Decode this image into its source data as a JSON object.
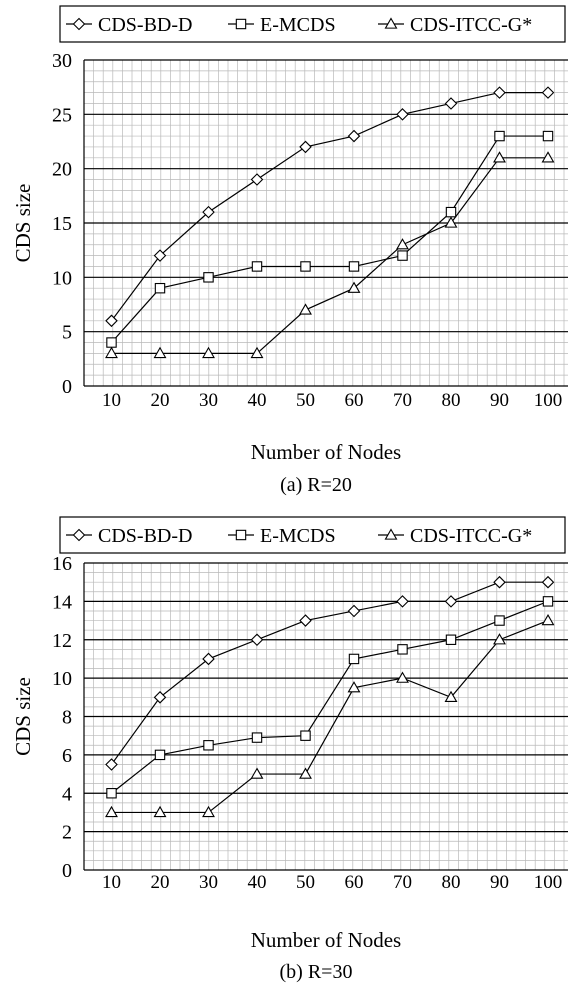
{
  "chart_data": [
    {
      "type": "line",
      "caption": "(a) R=20",
      "xlabel": "Number of Nodes",
      "ylabel": "CDS size",
      "x": [
        10,
        20,
        30,
        40,
        50,
        60,
        70,
        80,
        90,
        100
      ],
      "ylim": [
        0,
        30
      ],
      "yticks": [
        0,
        5,
        10,
        15,
        20,
        25,
        30
      ],
      "grid": true,
      "legend_position": "top",
      "series": [
        {
          "name": "CDS-BD-D",
          "marker": "diamond",
          "values": [
            6,
            12,
            16,
            19,
            22,
            23,
            25,
            26,
            27,
            27
          ]
        },
        {
          "name": "E-MCDS",
          "marker": "square",
          "values": [
            4,
            9,
            10,
            11,
            11,
            11,
            12,
            16,
            23,
            23
          ]
        },
        {
          "name": "CDS-ITCC-G*",
          "marker": "triangle",
          "values": [
            3,
            3,
            3,
            3,
            7,
            9,
            13,
            15,
            21,
            21
          ]
        }
      ]
    },
    {
      "type": "line",
      "caption": "(b) R=30",
      "xlabel": "Number of Nodes",
      "ylabel": "CDS size",
      "x": [
        10,
        20,
        30,
        40,
        50,
        60,
        70,
        80,
        90,
        100
      ],
      "ylim": [
        0,
        16
      ],
      "yticks": [
        0,
        2,
        4,
        6,
        8,
        10,
        12,
        14,
        16
      ],
      "grid": true,
      "legend_position": "top",
      "series": [
        {
          "name": "CDS-BD-D",
          "marker": "diamond",
          "values": [
            5.5,
            9,
            11,
            12,
            13,
            13.5,
            14,
            14,
            15,
            15
          ]
        },
        {
          "name": "E-MCDS",
          "marker": "square",
          "values": [
            4,
            6,
            6.5,
            6.9,
            7,
            11,
            11.5,
            12,
            13,
            14
          ]
        },
        {
          "name": "CDS-ITCC-G*",
          "marker": "triangle",
          "values": [
            3,
            3,
            3,
            5,
            5,
            9.5,
            10,
            9,
            12,
            13
          ]
        }
      ]
    }
  ]
}
